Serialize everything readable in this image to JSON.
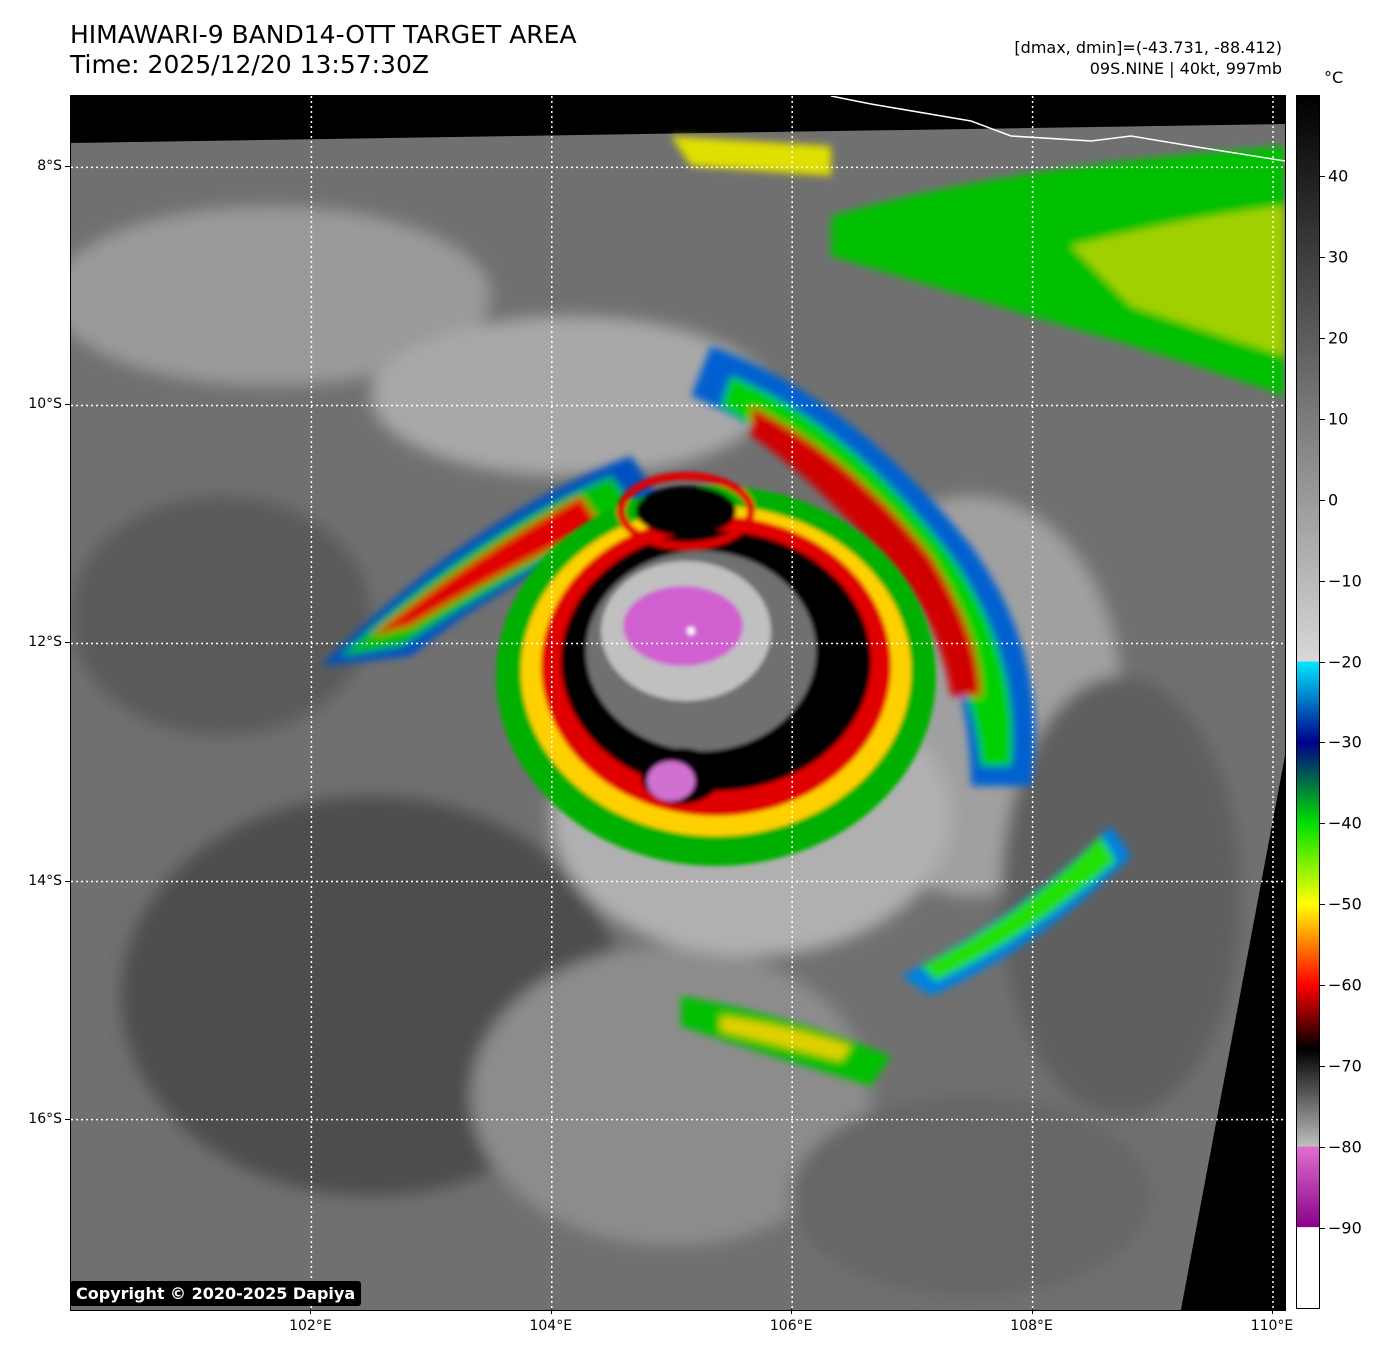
{
  "header": {
    "title_line1": "HIMAWARI-9 BAND14-OTT TARGET AREA",
    "title_line2": "Time: 2025/12/20 13:57:30Z",
    "range_text": "[dmax, dmin]=(-43.731, -88.412)",
    "storm_text": "09S.NINE | 40kt, 997mb"
  },
  "map": {
    "lon_range": [
      100.0,
      110.1
    ],
    "lat_range": [
      -17.6,
      -7.4
    ],
    "storm_center": {
      "lon": 105.2,
      "lat": -11.8
    }
  },
  "axes": {
    "lat_ticks": [
      {
        "value": -8,
        "label": "8°S"
      },
      {
        "value": -10,
        "label": "10°S"
      },
      {
        "value": -12,
        "label": "12°S"
      },
      {
        "value": -14,
        "label": "14°S"
      },
      {
        "value": -16,
        "label": "16°S"
      }
    ],
    "lon_ticks": [
      {
        "value": 102,
        "label": "102°E"
      },
      {
        "value": 104,
        "label": "104°E"
      },
      {
        "value": 106,
        "label": "106°E"
      },
      {
        "value": 108,
        "label": "108°E"
      },
      {
        "value": 110,
        "label": "110°E"
      }
    ]
  },
  "colorbar": {
    "unit": "°C",
    "range": [
      -100,
      50
    ],
    "ticks": [
      {
        "value": 40,
        "label": "40"
      },
      {
        "value": 30,
        "label": "30"
      },
      {
        "value": 20,
        "label": "20"
      },
      {
        "value": 10,
        "label": "10"
      },
      {
        "value": 0,
        "label": "0"
      },
      {
        "value": -10,
        "label": "−10"
      },
      {
        "value": -20,
        "label": "−20"
      },
      {
        "value": -30,
        "label": "−30"
      },
      {
        "value": -40,
        "label": "−40"
      },
      {
        "value": -50,
        "label": "−50"
      },
      {
        "value": -60,
        "label": "−60"
      },
      {
        "value": -70,
        "label": "−70"
      },
      {
        "value": -80,
        "label": "−80"
      },
      {
        "value": -90,
        "label": "−90"
      }
    ],
    "stops": [
      {
        "value": 50,
        "color": "#000000"
      },
      {
        "value": -20,
        "color": "#d8d8d8"
      },
      {
        "value": -20.01,
        "color": "#00e8ff"
      },
      {
        "value": -30,
        "color": "#00008b"
      },
      {
        "value": -40,
        "color": "#00e000"
      },
      {
        "value": -50,
        "color": "#ffff00"
      },
      {
        "value": -60,
        "color": "#ff0000"
      },
      {
        "value": -68,
        "color": "#000000"
      },
      {
        "value": -80,
        "color": "#c0c0c0"
      },
      {
        "value": -80.01,
        "color": "#e070d0"
      },
      {
        "value": -90,
        "color": "#8a008a"
      },
      {
        "value": -90.01,
        "color": "#ffffff"
      },
      {
        "value": -100,
        "color": "#ffffff"
      }
    ]
  },
  "footer": {
    "copyright": "Copyright © 2020-2025 Dapiya"
  }
}
